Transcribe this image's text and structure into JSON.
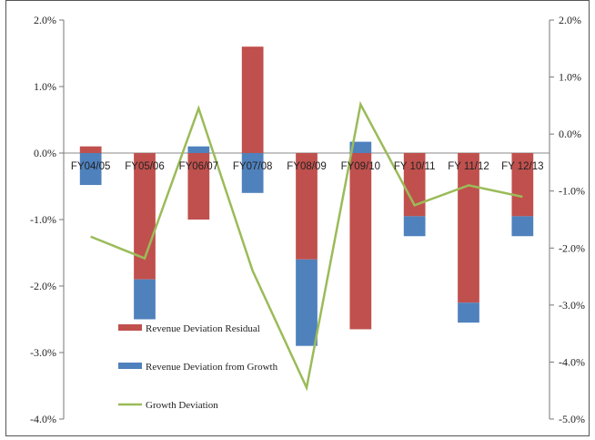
{
  "chart_data": {
    "type": "bar",
    "stacked": true,
    "categories": [
      "FY04/05",
      "FY05/06",
      "FY06/07",
      "FY07/08",
      "FY08/09",
      "FY09/10",
      "FY 10/11",
      "FY 11/12",
      "FY 12/13"
    ],
    "series": [
      {
        "name": "Revenue Deviation Residual",
        "type": "bar",
        "axis": "left",
        "color": "#c0504d",
        "values": [
          0.1,
          -1.9,
          -1.0,
          1.6,
          -1.6,
          -2.65,
          -0.95,
          -2.25,
          -0.95
        ]
      },
      {
        "name": "Revenue Deviation from Growth",
        "type": "bar",
        "axis": "left",
        "color": "#4f81bd",
        "values": [
          -0.48,
          -0.6,
          0.1,
          -0.6,
          -1.3,
          0.17,
          -0.3,
          -0.3,
          -0.3
        ]
      },
      {
        "name": "Growth Deviation",
        "type": "line",
        "axis": "right",
        "color": "#9bbb59",
        "values": [
          -1.8,
          -2.18,
          0.45,
          -2.4,
          -4.45,
          0.52,
          -1.25,
          -0.9,
          -1.1
        ]
      }
    ],
    "y_left": {
      "min": -4.0,
      "max": 2.0,
      "step": 1.0,
      "tick_labels": [
        "2.0%",
        "1.0%",
        "0.0%",
        "-1.0%",
        "-2.0%",
        "-3.0%",
        "-4.0%"
      ]
    },
    "y_right": {
      "min": -5.0,
      "max": 2.0,
      "step": 1.0,
      "tick_labels": [
        "2.0%",
        "1.0%",
        "0.0%",
        "-1.0%",
        "-2.0%",
        "-3.0%",
        "-4.0%",
        "-5.0%"
      ]
    },
    "legend": {
      "position": "bottom-left-inside",
      "entries": [
        "Revenue Deviation Residual",
        "Revenue Deviation from Growth",
        "Growth Deviation"
      ]
    },
    "grid": false
  }
}
